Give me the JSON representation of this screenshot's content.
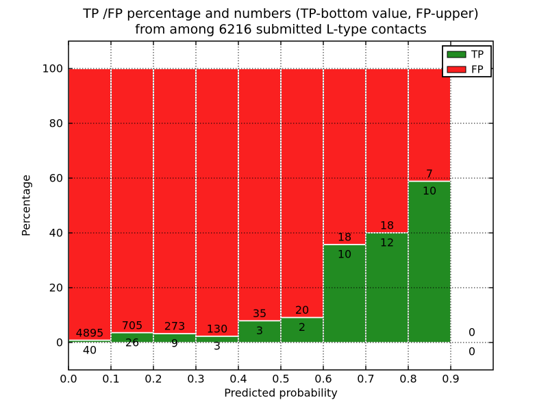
{
  "title": {
    "line1": "TP /FP percentage and numbers (TP-bottom value, FP-upper)",
    "line2": "from among 6216 submitted L-type contacts"
  },
  "chart_data": {
    "type": "bar",
    "stacked": true,
    "title": "TP /FP percentage and numbers (TP-bottom value, FP-upper)\nfrom among 6216 submitted L-type contacts",
    "xlabel": "Predicted probability",
    "ylabel": "Percentage",
    "xlim": [
      0.0,
      1.0
    ],
    "ylim": [
      -10,
      110
    ],
    "grid": true,
    "grid_style": "dotted",
    "bin_edges": [
      0.0,
      0.1,
      0.2,
      0.3,
      0.4,
      0.5,
      0.6,
      0.7,
      0.8,
      0.9,
      1.0
    ],
    "series": [
      {
        "name": "TP",
        "color": "#228b22",
        "counts": [
          40,
          26,
          9,
          3,
          3,
          2,
          10,
          12,
          10,
          0
        ]
      },
      {
        "name": "FP",
        "color": "#fa2020",
        "counts": [
          4895,
          705,
          273,
          130,
          35,
          20,
          18,
          18,
          7,
          0
        ]
      }
    ],
    "tp_percent_of_bin": [
      0.81,
      3.56,
      3.19,
      2.26,
      7.89,
      9.09,
      35.71,
      40.0,
      58.82,
      null
    ],
    "bar_total_percent": 100,
    "bar_edge_color": "#ffffff",
    "grid_color": "#000000",
    "xticks": [
      {
        "v": 0.0,
        "label": "0.0"
      },
      {
        "v": 0.1,
        "label": "0.1"
      },
      {
        "v": 0.2,
        "label": "0.2"
      },
      {
        "v": 0.3,
        "label": "0.3"
      },
      {
        "v": 0.4,
        "label": "0.4"
      },
      {
        "v": 0.5,
        "label": "0.5"
      },
      {
        "v": 0.6,
        "label": "0.6"
      },
      {
        "v": 0.7,
        "label": "0.7"
      },
      {
        "v": 0.8,
        "label": "0.8"
      },
      {
        "v": 0.9,
        "label": "0.9"
      }
    ],
    "yticks": [
      {
        "v": 0,
        "label": "0"
      },
      {
        "v": 20,
        "label": "20"
      },
      {
        "v": 40,
        "label": "40"
      },
      {
        "v": 60,
        "label": "60"
      },
      {
        "v": 80,
        "label": "80"
      },
      {
        "v": 100,
        "label": "100"
      }
    ],
    "legend": {
      "position": "upper right",
      "entries": [
        {
          "label": "TP",
          "color": "#228b22"
        },
        {
          "label": "FP",
          "color": "#fa2020"
        }
      ]
    }
  }
}
